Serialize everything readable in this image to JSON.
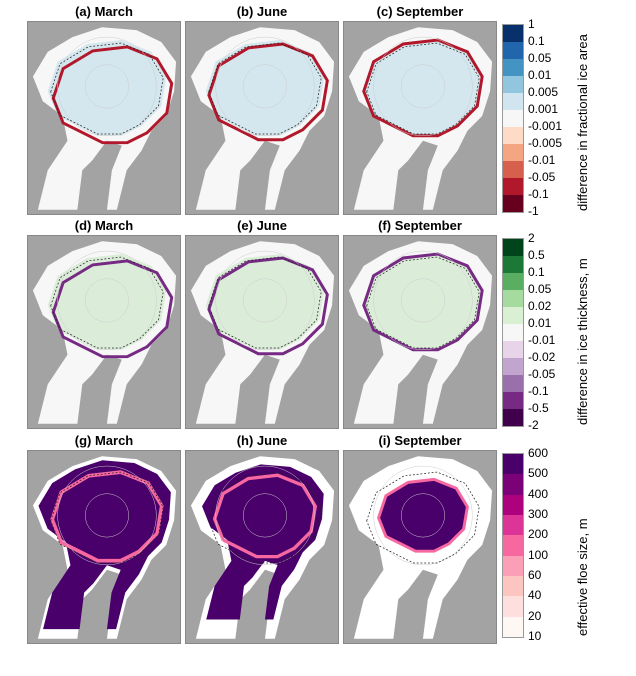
{
  "panels": [
    {
      "label": "(a) March",
      "row": 0,
      "ice": 0.3
    },
    {
      "label": "(b) June",
      "row": 0,
      "ice": 0.6
    },
    {
      "label": "(c) September",
      "row": 0,
      "ice": 1
    },
    {
      "label": "(d) March",
      "row": 1,
      "ice": 0.3
    },
    {
      "label": "(e) June",
      "row": 1,
      "ice": 0.6
    },
    {
      "label": "(f) September",
      "row": 1,
      "ice": 1
    },
    {
      "label": "(g) March",
      "row": 2,
      "ice": 0.3
    },
    {
      "label": "(h) June",
      "row": 2,
      "ice": 0.6
    },
    {
      "label": "(i) September",
      "row": 2,
      "ice": 1
    }
  ],
  "colorbars": [
    {
      "label": "difference in fractional ice area",
      "ticks": [
        "1",
        "0.1",
        "0.05",
        "0.01",
        "0.005",
        "0.001",
        "-0.001",
        "-0.005",
        "-0.01",
        "-0.05",
        "-0.1",
        "-1"
      ],
      "colors": [
        "#08306b",
        "#2166ac",
        "#4393c3",
        "#92c5de",
        "#d1e5f0",
        "#f7f7f7",
        "#fddbc7",
        "#f4a582",
        "#d6604d",
        "#b2182b",
        "#67001f"
      ]
    },
    {
      "label": "difference in ice thickness, m",
      "ticks": [
        "2",
        "0.5",
        "0.1",
        "0.05",
        "0.02",
        "0.01",
        "-0.01",
        "-0.02",
        "-0.05",
        "-0.1",
        "-0.5",
        "-2"
      ],
      "colors": [
        "#00441b",
        "#1b7837",
        "#5aae61",
        "#a6dba0",
        "#d9f0d3",
        "#f7f7f7",
        "#e7d4e8",
        "#c2a5cf",
        "#9970ab",
        "#762a83",
        "#40004b"
      ]
    },
    {
      "label": "effective floe size, m",
      "ticks": [
        "600",
        "500",
        "400",
        "300",
        "200",
        "100",
        "60",
        "40",
        "20",
        "10"
      ],
      "colors": [
        "#49006a",
        "#7a0177",
        "#ae017e",
        "#dd3497",
        "#f768a1",
        "#fa9fb5",
        "#fcc5c0",
        "#fde0dd",
        "#fff7f3"
      ]
    }
  ],
  "colors": {
    "land": "#a3a3a3",
    "ocean": "#f7f7f7",
    "ocean_row3": "#ffffff"
  }
}
